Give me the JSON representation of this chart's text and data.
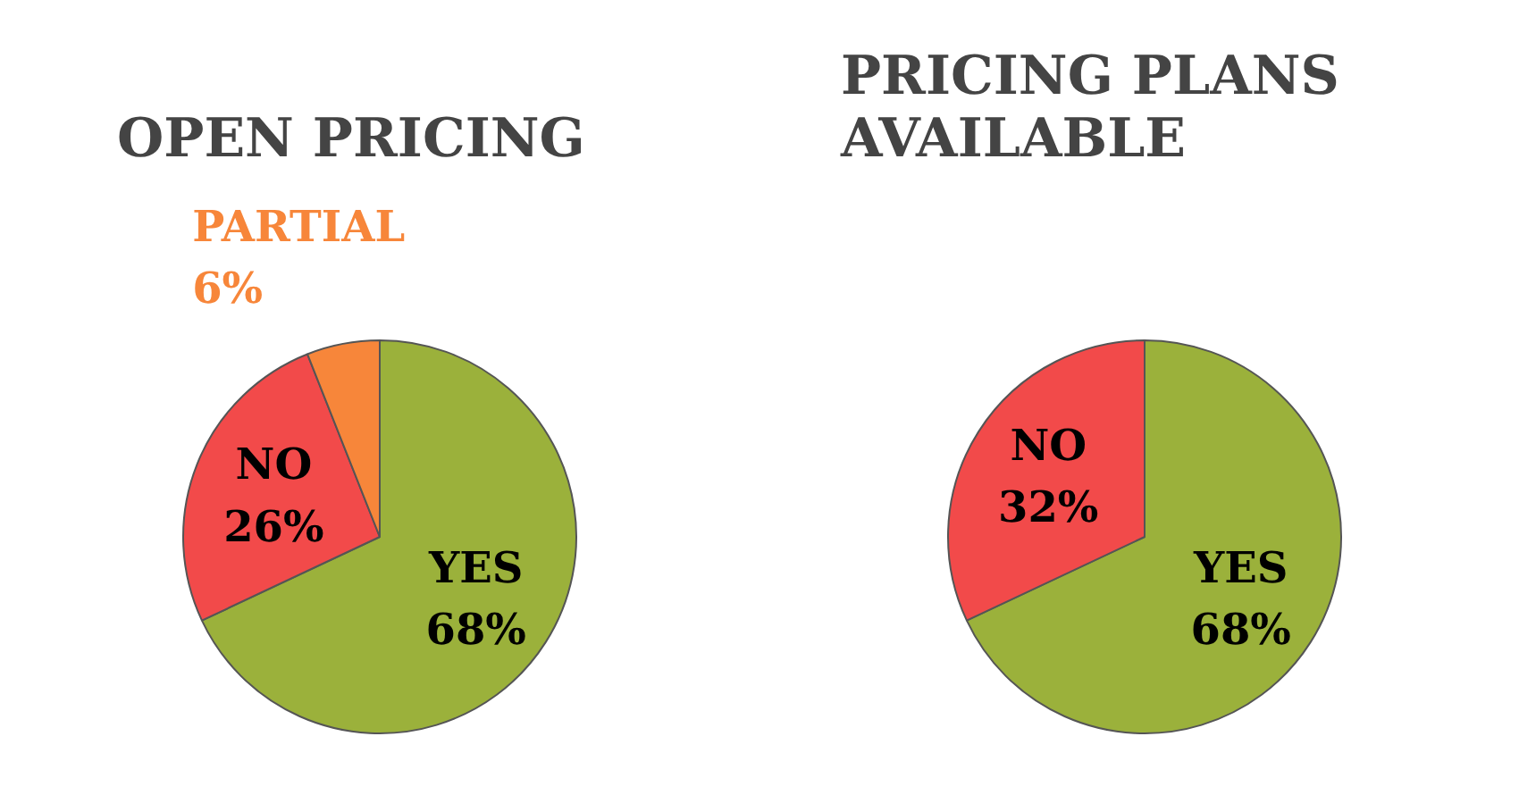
{
  "chart_data": [
    {
      "type": "pie",
      "title": "OPEN PRICING",
      "categories": [
        "YES",
        "NO",
        "PARTIAL"
      ],
      "values": [
        68,
        26,
        6
      ],
      "colors": [
        "#9bb13b",
        "#f24a4a",
        "#f7863a"
      ],
      "value_labels": [
        "68%",
        "26%",
        "6%"
      ]
    },
    {
      "type": "pie",
      "title": "PRICING PLANS\nAVAILABLE",
      "categories": [
        "YES",
        "NO"
      ],
      "values": [
        68,
        32
      ],
      "colors": [
        "#9bb13b",
        "#f24a4a"
      ],
      "value_labels": [
        "68%",
        "32%"
      ]
    }
  ]
}
